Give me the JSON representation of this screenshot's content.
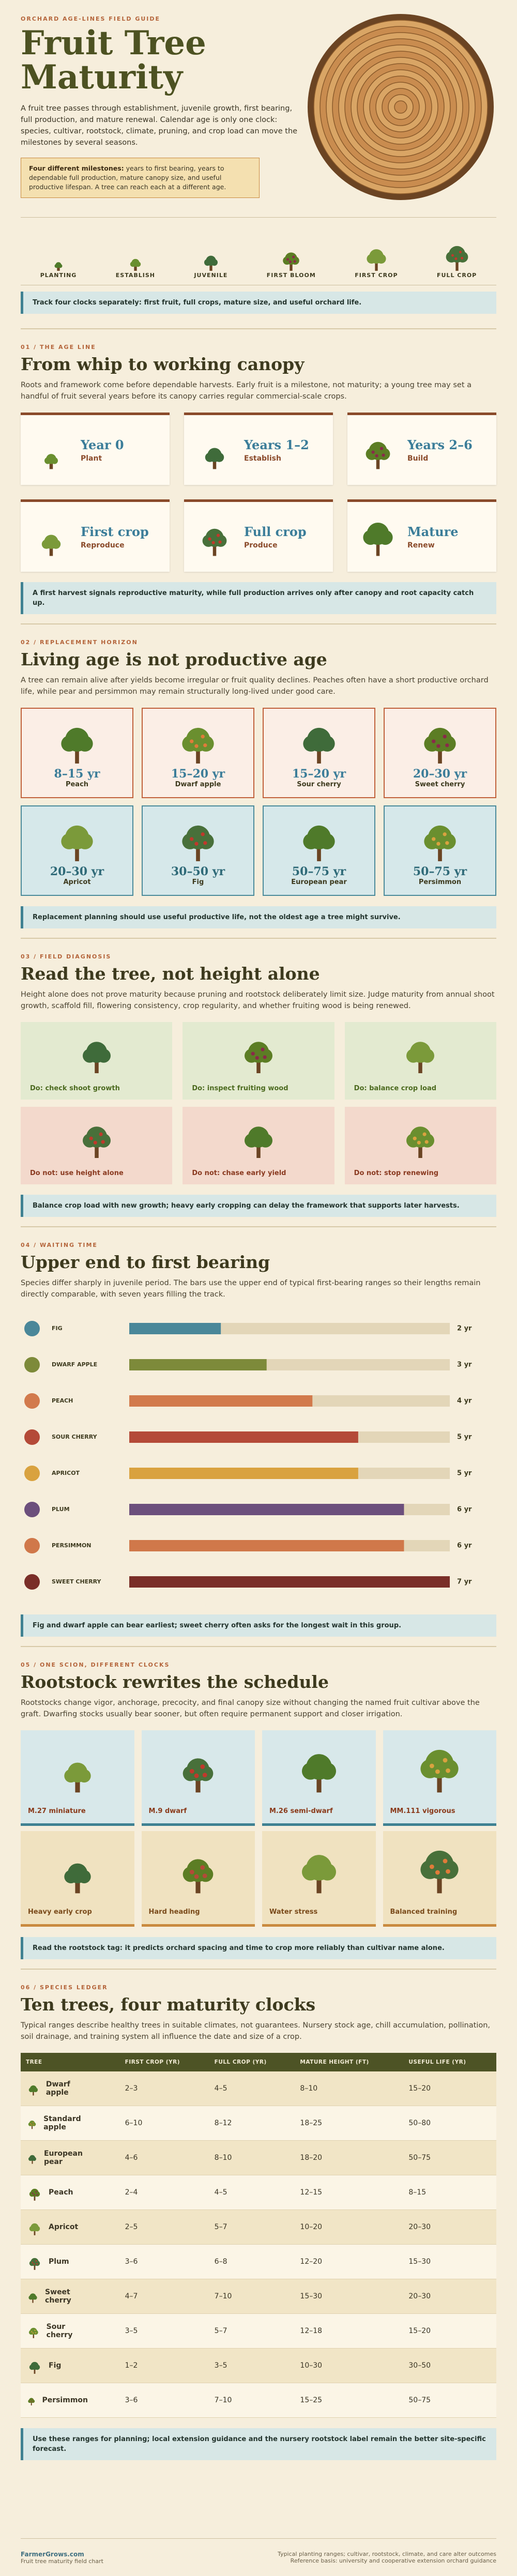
{
  "header": {
    "kicker": "ORCHARD AGE-LINES FIELD GUIDE",
    "title": "Fruit Tree Maturity",
    "intro": "A fruit tree passes through establishment, juvenile growth, first bearing, full production, and mature renewal. Calendar age is only one clock: species, cultivar, rootstock, climate, pruning, and crop load can move the milestones by several seasons.",
    "callout": {
      "lead": "Four different milestones:",
      "text": "years to first bearing, years to dependable full production, mature canopy size, and useful productive lifespan. A tree can reach each at a different age."
    }
  },
  "stages": [
    "PLANTING",
    "ESTABLISH",
    "JUVENILE",
    "FIRST BLOOM",
    "FIRST CROP",
    "FULL CROP"
  ],
  "stages_note": "Track four clocks separately: first fruit, full crops, mature size, and useful orchard life.",
  "sections": [
    {
      "kicker": "01 / THE AGE LINE",
      "title": "From whip to working canopy",
      "text": "Roots and framework come before dependable harvests. Early fruit is a milestone, not maturity; a young tree may set a handful of fruit several years before its canopy carries regular commercial-scale crops.",
      "cards": [
        {
          "value": "Year 0",
          "label": "Plant"
        },
        {
          "value": "Years 1–2",
          "label": "Establish"
        },
        {
          "value": "Years 2–6",
          "label": "Build"
        },
        {
          "value": "First crop",
          "label": "Reproduce"
        },
        {
          "value": "Full crop",
          "label": "Produce"
        },
        {
          "value": "Mature",
          "label": "Renew"
        }
      ],
      "note": "A first harvest signals reproductive maturity, while full production arrives only after canopy and root capacity catch up."
    },
    {
      "kicker": "02 / REPLACEMENT HORIZON",
      "title": "Living age is not productive age",
      "text": "A tree can remain alive after yields become irregular or fruit quality declines. Peaches often have a short productive orchard life, while pear and persimmon may remain structurally long-lived under good care.",
      "cards": [
        {
          "value": "8–15 yr",
          "label": "Peach"
        },
        {
          "value": "15–20 yr",
          "label": "Dwarf apple"
        },
        {
          "value": "15–20 yr",
          "label": "Sour cherry"
        },
        {
          "value": "20–30 yr",
          "label": "Sweet cherry"
        },
        {
          "value": "20–30 yr",
          "label": "Apricot"
        },
        {
          "value": "30–50 yr",
          "label": "Fig"
        },
        {
          "value": "50–75 yr",
          "label": "European pear"
        },
        {
          "value": "50–75 yr",
          "label": "Persimmon"
        }
      ],
      "note": "Replacement planning should use useful productive life, not the oldest age a tree might survive."
    },
    {
      "kicker": "03 / FIELD DIAGNOSIS",
      "title": "Read the tree, not height alone",
      "text": "Height alone does not prove maturity because pruning and rootstock deliberately limit size. Judge maturity from annual shoot growth, scaffold fill, flowering consistency, crop regularity, and whether fruiting wood is being renewed.",
      "cards": [
        "Do: check shoot growth",
        "Do: inspect fruiting wood",
        "Do: balance crop load",
        "Do not: use height alone",
        "Do not: chase early yield",
        "Do not: stop renewing"
      ],
      "note": "Balance crop load with new growth; heavy early cropping can delay the framework that supports later harvests."
    },
    {
      "kicker": "04 / WAITING TIME",
      "title": "Upper end to first bearing",
      "text": "Species differ sharply in juvenile period. The bars use the upper end of typical first-bearing ranges so their lengths remain directly comparable, with seven years filling the track.",
      "note": "Fig and dwarf apple can bear earliest; sweet cherry often asks for the longest wait in this group."
    },
    {
      "kicker": "05 / ONE SCION, DIFFERENT CLOCKS",
      "title": "Rootstock rewrites the schedule",
      "text": "Rootstocks change vigor, anchorage, precocity, and final canopy size without changing the named fruit cultivar above the graft. Dwarfing stocks usually bear sooner, but often require permanent support and closer irrigation.",
      "cards": [
        "M.27 miniature",
        "M.9 dwarf",
        "M.26 semi-dwarf",
        "MM.111 vigorous",
        "Heavy early crop",
        "Hard heading",
        "Water stress",
        "Balanced training"
      ],
      "note": "Read the rootstock tag: it predicts orchard spacing and time to crop more reliably than cultivar name alone."
    },
    {
      "kicker": "06 / SPECIES LEDGER",
      "title": "Ten trees, four maturity clocks",
      "text": "Typical ranges describe healthy trees in suitable climates, not guarantees. Nursery stock age, chill accumulation, pollination, soil drainage, and training system all influence the date and size of a crop.",
      "table": {
        "headers": [
          "TREE",
          "FIRST CROP (YR)",
          "FULL CROP (YR)",
          "MATURE HEIGHT (FT)",
          "USEFUL LIFE (YR)"
        ],
        "rows": [
          [
            "Dwarf apple",
            "2–3",
            "4–5",
            "8–10",
            "15–20"
          ],
          [
            "Standard apple",
            "6–10",
            "8–12",
            "18–25",
            "50–80"
          ],
          [
            "European pear",
            "4–6",
            "8–10",
            "18–20",
            "50–75"
          ],
          [
            "Peach",
            "2–4",
            "4–5",
            "12–15",
            "8–15"
          ],
          [
            "Apricot",
            "2–5",
            "5–7",
            "10–20",
            "20–30"
          ],
          [
            "Plum",
            "3–6",
            "6–8",
            "12–20",
            "15–30"
          ],
          [
            "Sweet cherry",
            "4–7",
            "7–10",
            "15–30",
            "20–30"
          ],
          [
            "Sour cherry",
            "3–5",
            "5–7",
            "12–18",
            "15–20"
          ],
          [
            "Fig",
            "1–2",
            "3–5",
            "10–30",
            "30–50"
          ],
          [
            "Persimmon",
            "3–6",
            "7–10",
            "15–25",
            "50–75"
          ]
        ]
      },
      "note": "Use these ranges for planning; local extension guidance and the nursery rootstock label remain the better site-specific forecast."
    }
  ],
  "chart_data": {
    "type": "bar",
    "orientation": "horizontal",
    "categories": [
      "FIG",
      "DWARF APPLE",
      "PEACH",
      "SOUR CHERRY",
      "APRICOT",
      "PLUM",
      "PERSIMMON",
      "SWEET CHERRY"
    ],
    "values": [
      2,
      3,
      4,
      5,
      5,
      6,
      6,
      7
    ],
    "value_labels": [
      "2 yr",
      "3 yr",
      "4 yr",
      "5 yr",
      "5 yr",
      "6 yr",
      "6 yr",
      "7 yr"
    ],
    "colors": [
      "#4a8799",
      "#7d8a3a",
      "#d27a4c",
      "#b44a38",
      "#d9a23f",
      "#6c4f7c",
      "#d0784a",
      "#7a2e28"
    ],
    "xlim": [
      0,
      7
    ]
  },
  "footer": {
    "brand": "FarmerGrows.com",
    "subtitle": "Fruit tree maturity field chart",
    "caveat": "Typical planting ranges; cultivar, rootstock, climate, and care alter outcomes",
    "source": "Reference basis: university and cooperative extension orchard guidance"
  }
}
